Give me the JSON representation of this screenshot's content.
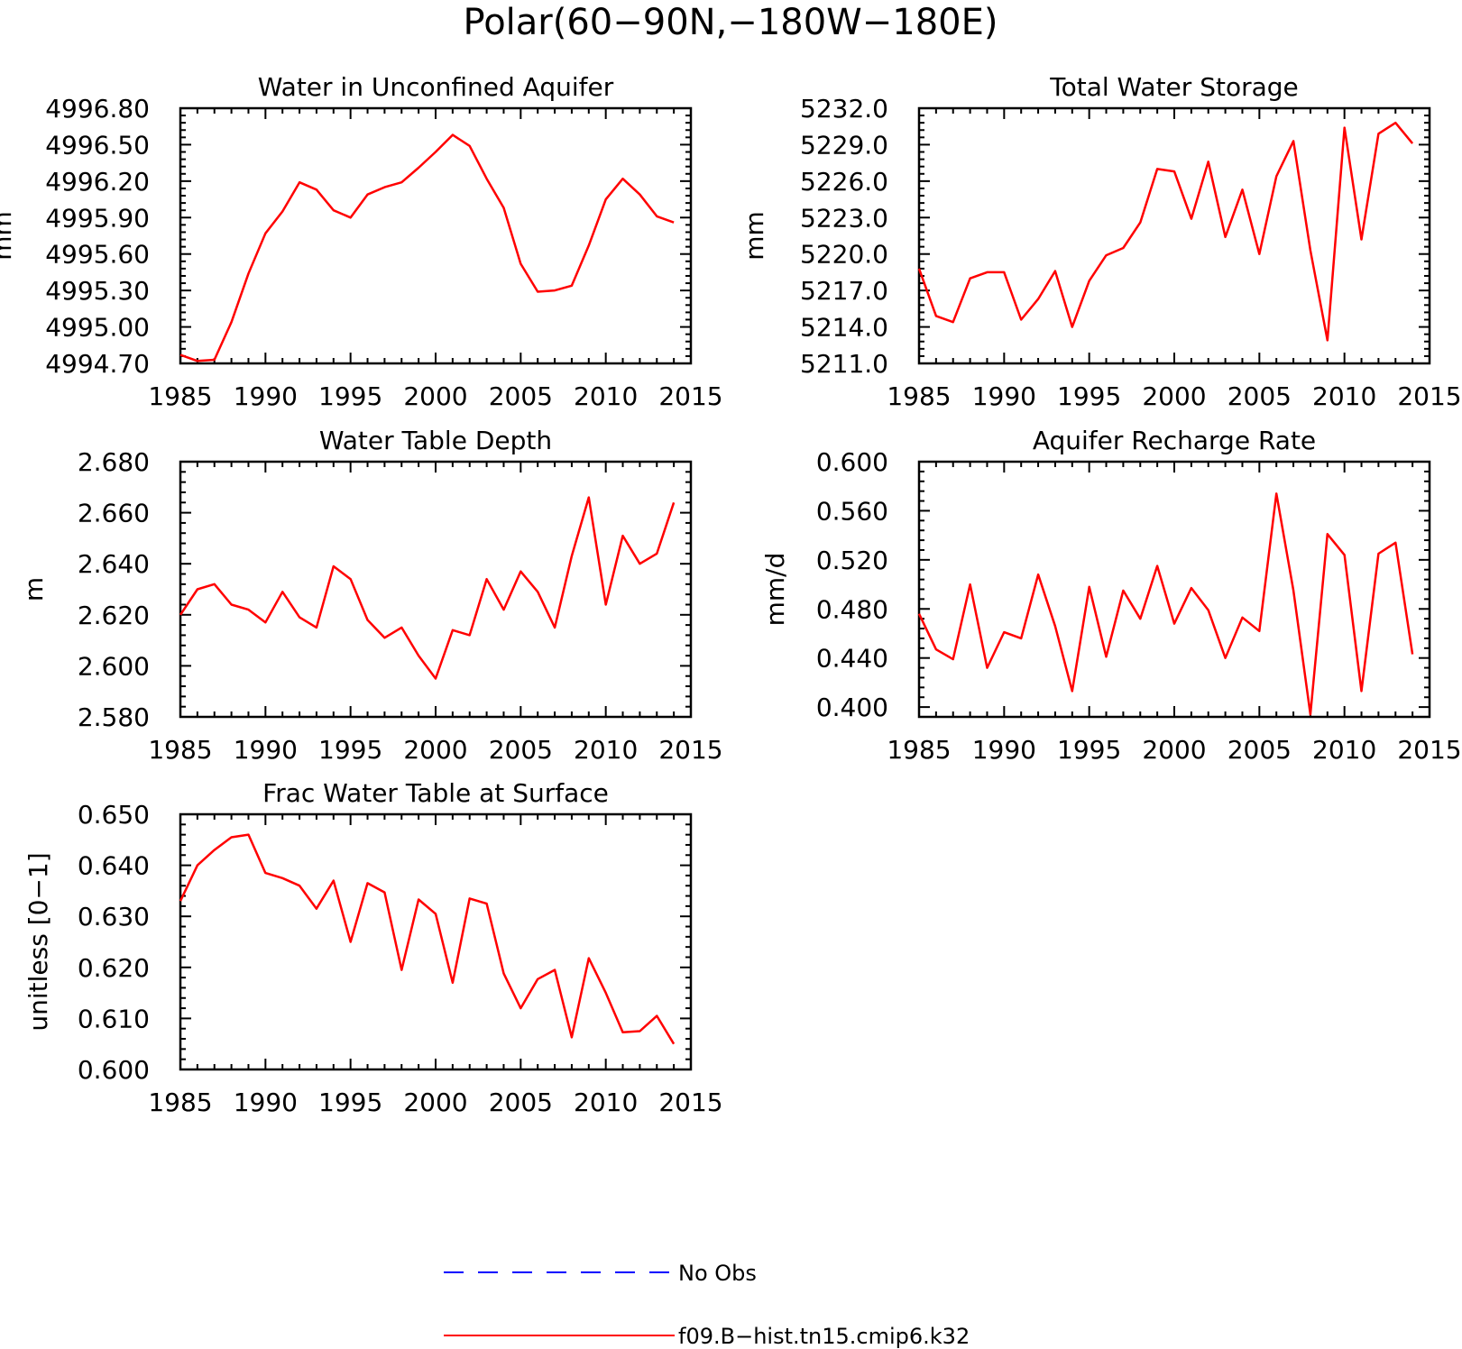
{
  "figure_title": "Polar(60−90N,−180W−180E)",
  "colors": {
    "model_line": "#ff0000",
    "obs_line": "#0000ff",
    "axis": "#000000"
  },
  "legend": {
    "obs_label": "No Obs",
    "model_label": "f09.B−hist.tn15.cmip6.k32"
  },
  "chart_data": [
    {
      "type": "line",
      "title": "Water in Unconfined Aquifer",
      "ylabel": "mm",
      "xlim": [
        1985,
        2015
      ],
      "ylim": [
        4994.7,
        4996.8
      ],
      "xticks": [
        1985,
        1990,
        1995,
        2000,
        2005,
        2010,
        2015
      ],
      "yticks": [
        "4994.70",
        "4995.00",
        "4995.30",
        "4995.60",
        "4995.90",
        "4996.20",
        "4996.50",
        "4996.80"
      ],
      "series": [
        {
          "x": [
            1985,
            1986,
            1987,
            1988,
            1989,
            1990,
            1991,
            1992,
            1993,
            1994,
            1995,
            1996,
            1997,
            1998,
            1999,
            2000,
            2001,
            2002,
            2003,
            2004,
            2005,
            2006,
            2007,
            2008,
            2009,
            2010,
            2011,
            2012,
            2013,
            2014
          ],
          "values": [
            4994.77,
            4994.72,
            4994.73,
            4995.04,
            4995.44,
            4995.77,
            4995.95,
            4996.19,
            4996.13,
            4995.96,
            4995.9,
            4996.09,
            4996.15,
            4996.19,
            4996.31,
            4996.44,
            4996.58,
            4996.49,
            4996.22,
            4995.98,
            4995.52,
            4995.29,
            4995.3,
            4995.34,
            4995.67,
            4996.05,
            4996.22,
            4996.09,
            4995.91,
            4995.86
          ]
        }
      ]
    },
    {
      "type": "line",
      "title": "Total Water Storage",
      "ylabel": "mm",
      "xlim": [
        1985,
        2015
      ],
      "ylim": [
        5211.0,
        5232.0
      ],
      "xticks": [
        1985,
        1990,
        1995,
        2000,
        2005,
        2010,
        2015
      ],
      "yticks": [
        "5211.0",
        "5214.0",
        "5217.0",
        "5220.0",
        "5223.0",
        "5226.0",
        "5229.0",
        "5232.0"
      ],
      "series": [
        {
          "x": [
            1985,
            1986,
            1987,
            1988,
            1989,
            1990,
            1991,
            1992,
            1993,
            1994,
            1995,
            1996,
            1997,
            1998,
            1999,
            2000,
            2001,
            2002,
            2003,
            2004,
            2005,
            2006,
            2007,
            2008,
            2009,
            2010,
            2011,
            2012,
            2013,
            2014
          ],
          "values": [
            5218.8,
            5214.9,
            5214.4,
            5218.0,
            5218.5,
            5218.5,
            5214.6,
            5216.3,
            5218.6,
            5214.0,
            5217.8,
            5219.9,
            5220.5,
            5222.6,
            5227.0,
            5226.8,
            5222.9,
            5227.6,
            5221.4,
            5225.3,
            5220.0,
            5226.4,
            5229.3,
            5220.3,
            5212.9,
            5230.4,
            5221.2,
            5229.9,
            5230.8,
            5229.1
          ]
        }
      ]
    },
    {
      "type": "line",
      "title": "Water Table Depth",
      "ylabel": "m",
      "xlim": [
        1985,
        2015
      ],
      "ylim": [
        2.58,
        2.68
      ],
      "xticks": [
        1985,
        1990,
        1995,
        2000,
        2005,
        2010,
        2015
      ],
      "yticks": [
        "2.580",
        "2.600",
        "2.620",
        "2.640",
        "2.660",
        "2.680"
      ],
      "series": [
        {
          "x": [
            1985,
            1986,
            1987,
            1988,
            1989,
            1990,
            1991,
            1992,
            1993,
            1994,
            1995,
            1996,
            1997,
            1998,
            1999,
            2000,
            2001,
            2002,
            2003,
            2004,
            2005,
            2006,
            2007,
            2008,
            2009,
            2010,
            2011,
            2012,
            2013,
            2014
          ],
          "values": [
            2.62,
            2.63,
            2.632,
            2.624,
            2.622,
            2.617,
            2.629,
            2.619,
            2.615,
            2.639,
            2.634,
            2.618,
            2.611,
            2.615,
            2.604,
            2.595,
            2.614,
            2.612,
            2.634,
            2.622,
            2.637,
            2.629,
            2.615,
            2.643,
            2.666,
            2.624,
            2.651,
            2.64,
            2.644,
            2.664
          ]
        }
      ]
    },
    {
      "type": "line",
      "title": "Aquifer Recharge Rate",
      "ylabel": "mm/d",
      "xlim": [
        1985,
        2015
      ],
      "ylim": [
        0.392,
        0.6
      ],
      "xticks": [
        1985,
        1990,
        1995,
        2000,
        2005,
        2010,
        2015
      ],
      "yticks": [
        "0.400",
        "0.440",
        "0.480",
        "0.520",
        "0.560",
        "0.600"
      ],
      "series": [
        {
          "x": [
            1985,
            1986,
            1987,
            1988,
            1989,
            1990,
            1991,
            1992,
            1993,
            1994,
            1995,
            1996,
            1997,
            1998,
            1999,
            2000,
            2001,
            2002,
            2003,
            2004,
            2005,
            2006,
            2007,
            2008,
            2009,
            2010,
            2011,
            2012,
            2013,
            2014
          ],
          "values": [
            0.476,
            0.447,
            0.439,
            0.5,
            0.432,
            0.461,
            0.456,
            0.508,
            0.466,
            0.413,
            0.498,
            0.441,
            0.495,
            0.472,
            0.515,
            0.468,
            0.497,
            0.479,
            0.44,
            0.473,
            0.462,
            0.574,
            0.495,
            0.394,
            0.541,
            0.524,
            0.413,
            0.525,
            0.534,
            0.443
          ]
        }
      ]
    },
    {
      "type": "line",
      "title": "Frac Water Table at Surface",
      "ylabel": "unitless [0−1]",
      "xlim": [
        1985,
        2015
      ],
      "ylim": [
        0.6,
        0.65
      ],
      "xticks": [
        1985,
        1990,
        1995,
        2000,
        2005,
        2010,
        2015
      ],
      "yticks": [
        "0.600",
        "0.610",
        "0.620",
        "0.630",
        "0.640",
        "0.650"
      ],
      "series": [
        {
          "x": [
            1985,
            1986,
            1987,
            1988,
            1989,
            1990,
            1991,
            1992,
            1993,
            1994,
            1995,
            1996,
            1997,
            1998,
            1999,
            2000,
            2001,
            2002,
            2003,
            2004,
            2005,
            2006,
            2007,
            2008,
            2009,
            2010,
            2011,
            2012,
            2013,
            2014
          ],
          "values": [
            0.633,
            0.64,
            0.643,
            0.6455,
            0.646,
            0.6385,
            0.6375,
            0.636,
            0.6315,
            0.637,
            0.625,
            0.6365,
            0.6347,
            0.6195,
            0.6333,
            0.6305,
            0.617,
            0.6335,
            0.6325,
            0.6188,
            0.612,
            0.6177,
            0.6195,
            0.6063,
            0.6218,
            0.615,
            0.6073,
            0.6075,
            0.6105,
            0.605
          ]
        }
      ]
    }
  ]
}
